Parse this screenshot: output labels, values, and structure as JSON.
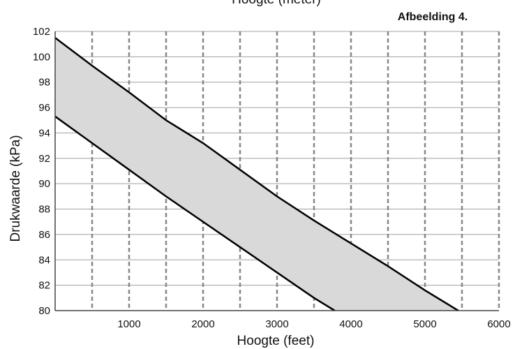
{
  "chart_data": {
    "type": "area",
    "figure_label": "Afbeelding 4.",
    "top_axis_title_partial": "Hoogte (meter)",
    "xlabel": "Hoogte (feet)",
    "ylabel": "Drukwaarde (kPa)",
    "xlim": [
      0,
      6000
    ],
    "ylim": [
      80,
      102
    ],
    "x_ticks": [
      1000,
      2000,
      3000,
      4000,
      5000,
      6000
    ],
    "y_ticks": [
      80,
      82,
      84,
      86,
      88,
      90,
      92,
      94,
      96,
      98,
      100,
      102
    ],
    "vertical_grid": [
      500,
      1000,
      1500,
      2000,
      2500,
      3000,
      3500,
      4000,
      4500,
      5000,
      5500
    ],
    "grid": true,
    "colors": {
      "band_fill": "#d9d9d9",
      "band_edge": "#000000",
      "grid": "#888888",
      "axis": "#444444"
    },
    "series": [
      {
        "role": "upper",
        "x": [
          0,
          500,
          1000,
          1500,
          2000,
          2500,
          3000,
          3500,
          4000,
          4500,
          5000,
          5450
        ],
        "y": [
          101.5,
          99.3,
          97.2,
          95.0,
          93.2,
          91.1,
          89.0,
          87.1,
          85.3,
          83.5,
          81.6,
          80.0
        ]
      },
      {
        "role": "lower",
        "x": [
          0,
          500,
          1000,
          1500,
          2000,
          2500,
          3000,
          3500,
          3780
        ],
        "y": [
          95.3,
          93.2,
          91.1,
          89.0,
          87.0,
          85.0,
          83.0,
          81.0,
          80.0
        ]
      }
    ]
  }
}
